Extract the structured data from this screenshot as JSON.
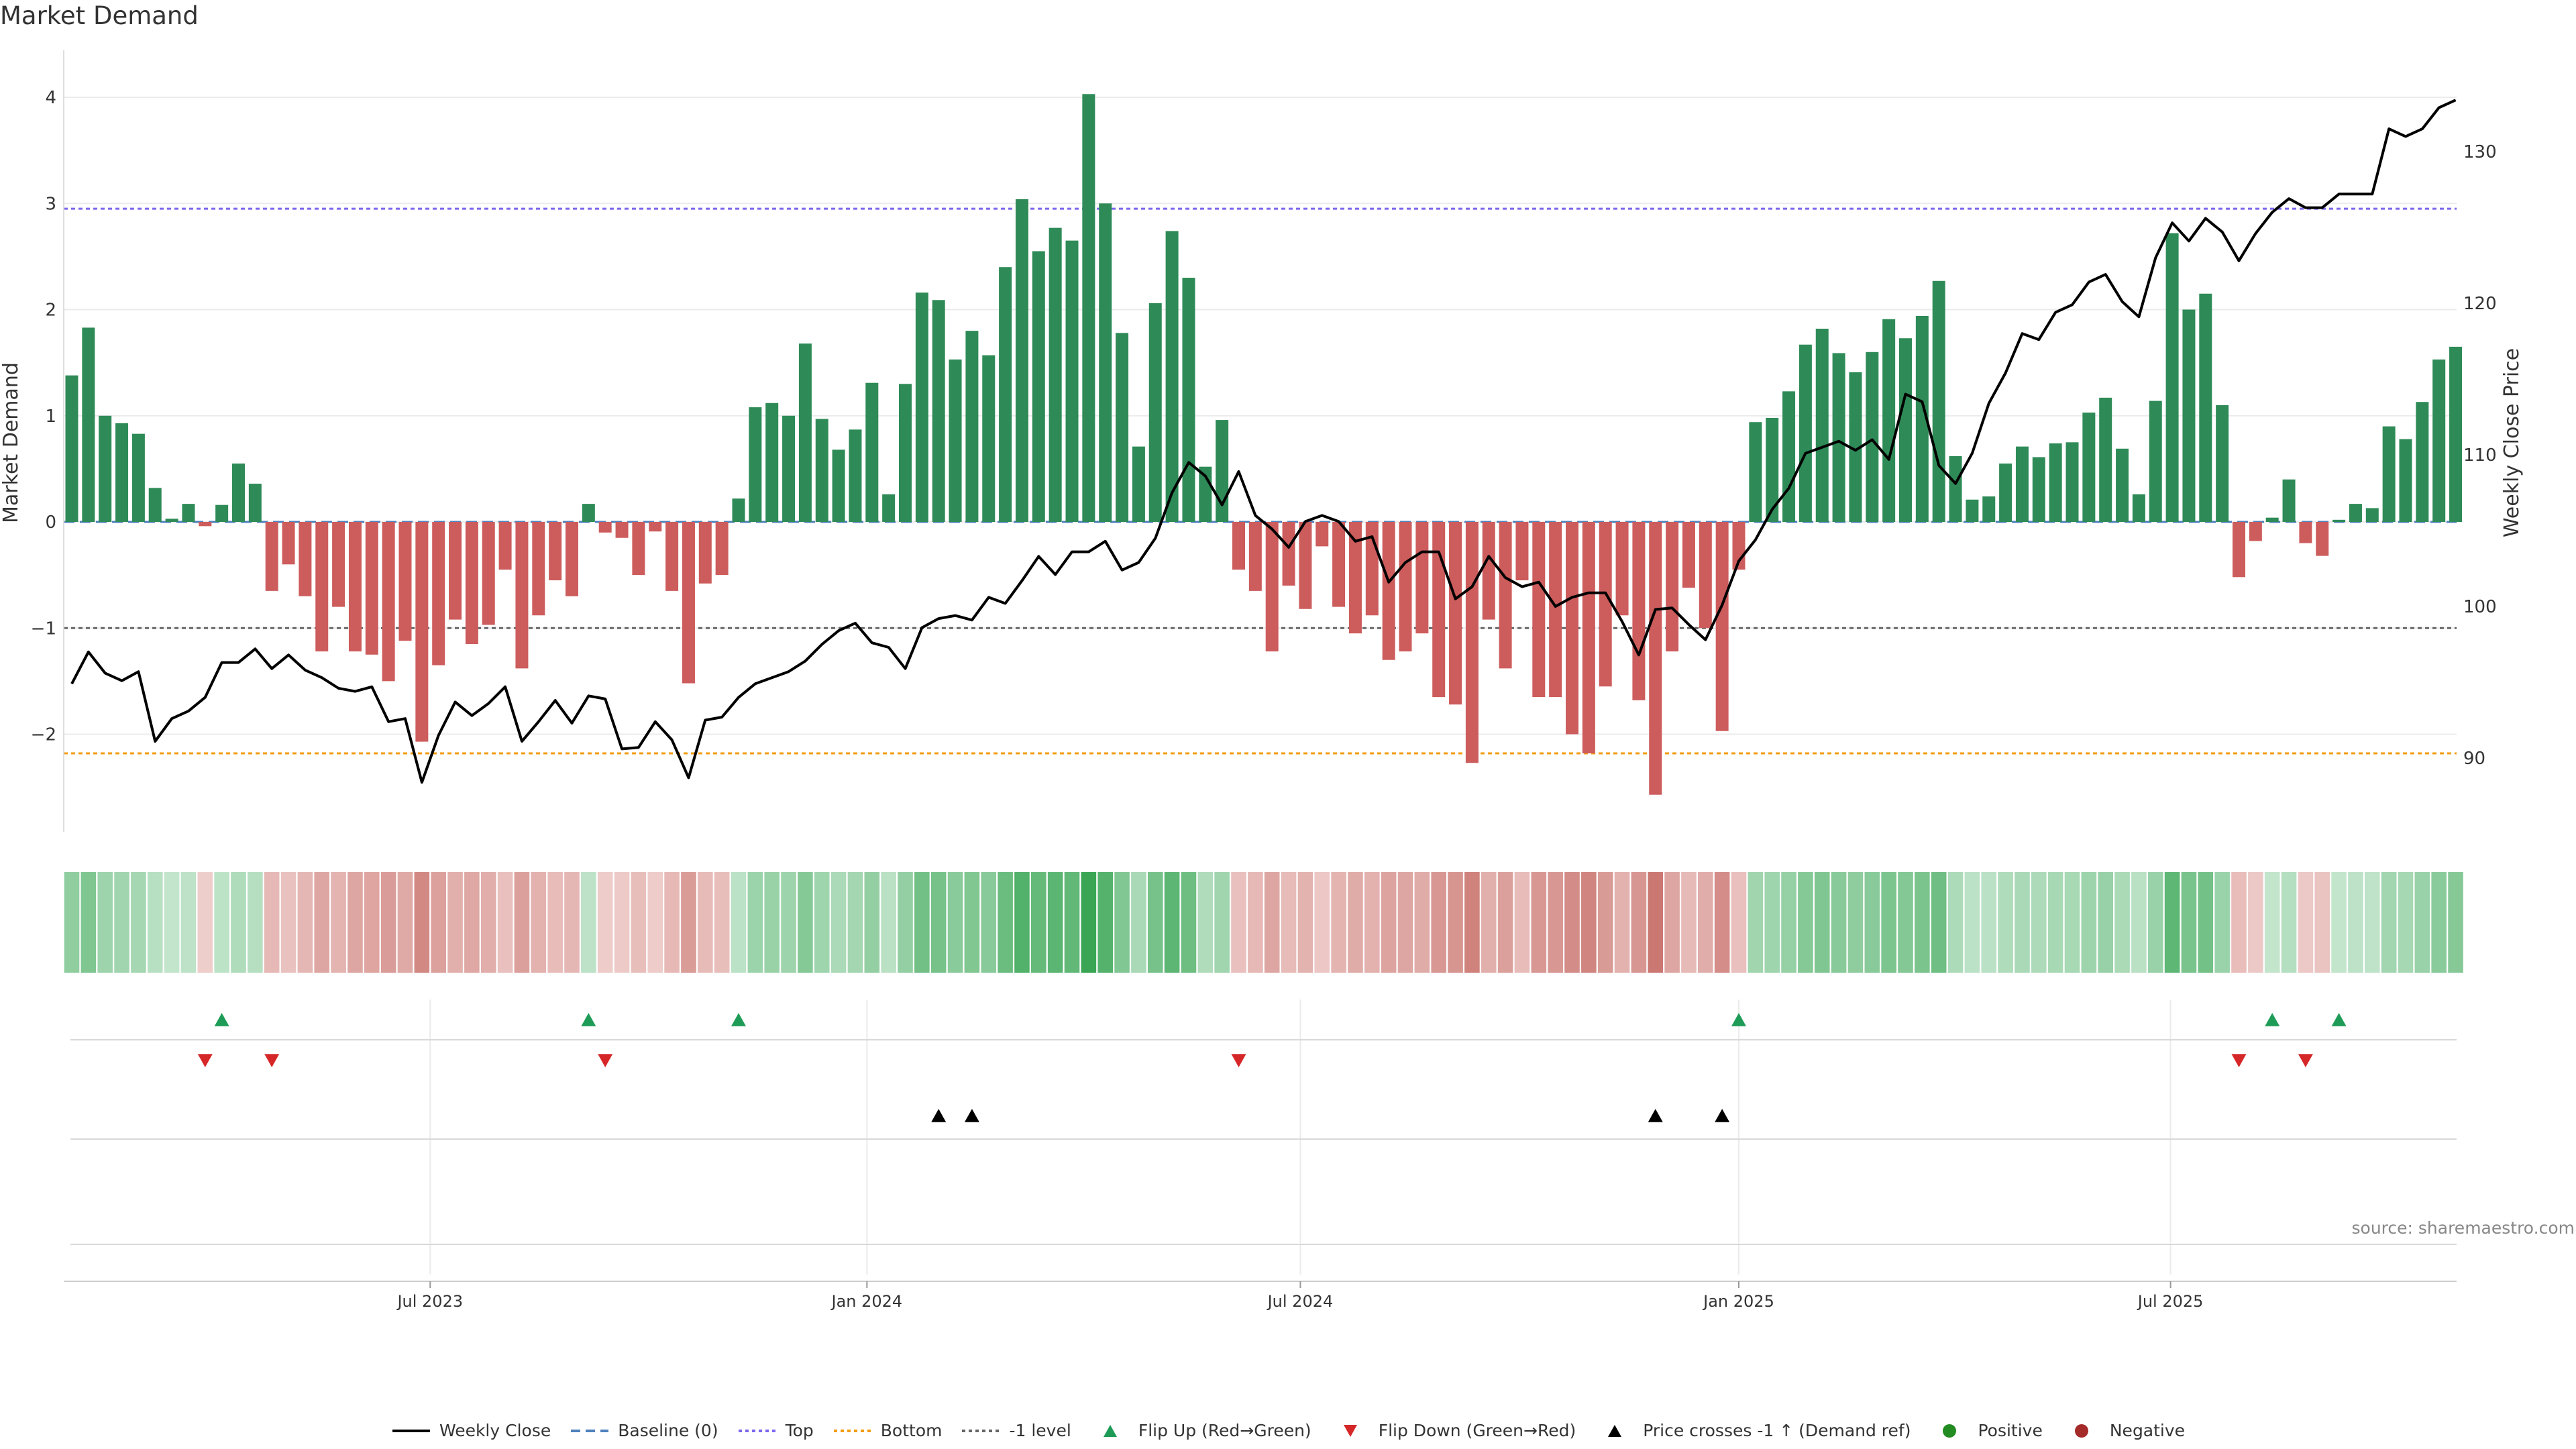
{
  "title": "Market Demand",
  "source_note": "source: sharemaestro.com",
  "colors": {
    "positive": "#2e8b57",
    "negative": "#cd5c5c",
    "price": "#000000",
    "baseline": "#4f81bd",
    "top": "#7b68ee",
    "bottom": "#f39c12",
    "minus1": "#666666",
    "flip_up": "#1e9c57",
    "flip_down": "#d62728",
    "cross": "#000000",
    "pos_dot": "#228b22",
    "neg_dot": "#a52a2a"
  },
  "chart_data": {
    "type": "bar",
    "title": "Market Demand",
    "ylabel_left": "Market Demand",
    "ylabel_right": "Weekly Close Price",
    "y_left_ticks": [
      4,
      3,
      2,
      1,
      0,
      -1,
      -2
    ],
    "y_left_tick_labels": [
      "4",
      "3",
      "2",
      "1",
      "0",
      "−1",
      "−2"
    ],
    "y_right_ticks": [
      90,
      100,
      110,
      120,
      130
    ],
    "y_left_range": [
      -2.9,
      4.3
    ],
    "y_right_range": [
      83.6,
      137.1
    ],
    "x_ticks": [
      {
        "label": "Jul 2023",
        "week": 21.5
      },
      {
        "label": "Jan 2024",
        "week": 47.7
      },
      {
        "label": "Jul 2024",
        "week": 73.7
      },
      {
        "label": "Jan 2025",
        "week": 100
      },
      {
        "label": "Jul 2025",
        "week": 125.9
      }
    ],
    "levels": {
      "baseline": 0,
      "top": 2.95,
      "bottom": -2.18,
      "minus1": -1.0
    },
    "demand": [
      1.38,
      1.83,
      1.0,
      0.93,
      0.83,
      0.32,
      0.03,
      0.17,
      -0.04,
      0.16,
      0.55,
      0.36,
      -0.65,
      -0.4,
      -0.7,
      -1.22,
      -0.8,
      -1.22,
      -1.25,
      -1.5,
      -1.12,
      -2.07,
      -1.35,
      -0.92,
      -1.15,
      -0.97,
      -0.45,
      -1.38,
      -0.88,
      -0.55,
      -0.7,
      0.17,
      -0.1,
      -0.15,
      -0.5,
      -0.09,
      -0.65,
      -1.52,
      -0.58,
      -0.5,
      0.22,
      1.08,
      1.12,
      1.0,
      1.68,
      0.97,
      0.68,
      0.87,
      1.31,
      0.26,
      1.3,
      2.16,
      2.09,
      1.53,
      1.8,
      1.57,
      2.4,
      3.04,
      2.55,
      2.77,
      2.65,
      4.03,
      3.0,
      1.78,
      0.71,
      2.06,
      2.74,
      2.3,
      0.52,
      0.96,
      -0.45,
      -0.65,
      -1.22,
      -0.6,
      -0.82,
      -0.23,
      -0.8,
      -1.05,
      -0.88,
      -1.3,
      -1.22,
      -1.05,
      -1.65,
      -1.72,
      -2.27,
      -0.92,
      -1.38,
      -0.55,
      -1.65,
      -1.65,
      -2.0,
      -2.18,
      -1.55,
      -0.88,
      -1.68,
      -2.57,
      -1.22,
      -0.62,
      -1.0,
      -1.97,
      -0.45,
      0.94,
      0.98,
      1.23,
      1.67,
      1.82,
      1.59,
      1.41,
      1.6,
      1.91,
      1.73,
      1.94,
      2.27,
      0.62,
      0.21,
      0.24,
      0.55,
      0.71,
      0.61,
      0.74,
      0.75,
      1.03,
      1.17,
      0.69,
      0.26,
      1.14,
      2.72,
      2.0,
      2.15,
      1.1,
      -0.52,
      -0.18,
      0.04,
      0.4,
      -0.2,
      -0.32,
      0.02,
      0.17,
      0.13,
      0.9,
      0.78,
      1.13,
      1.53,
      1.65
    ],
    "price": [
      94.9,
      97.0,
      95.6,
      95.1,
      95.7,
      91.1,
      92.6,
      93.1,
      94.0,
      96.3,
      96.3,
      97.2,
      95.9,
      96.8,
      95.8,
      95.3,
      94.6,
      94.4,
      94.7,
      92.4,
      92.6,
      88.4,
      91.5,
      93.7,
      92.8,
      93.6,
      94.7,
      91.1,
      92.4,
      93.8,
      92.3,
      94.1,
      93.9,
      90.6,
      90.7,
      92.4,
      91.2,
      88.7,
      92.5,
      92.7,
      94.0,
      94.9,
      95.3,
      95.7,
      96.4,
      97.5,
      98.4,
      98.9,
      97.6,
      97.3,
      95.9,
      98.6,
      99.2,
      99.4,
      99.1,
      100.6,
      100.2,
      101.7,
      103.3,
      102.1,
      103.6,
      103.6,
      104.3,
      102.4,
      102.9,
      104.5,
      107.5,
      109.5,
      108.6,
      106.7,
      108.9,
      106.0,
      105.1,
      103.9,
      105.6,
      106.0,
      105.6,
      104.3,
      104.6,
      101.6,
      102.9,
      103.6,
      103.6,
      100.5,
      101.3,
      103.3,
      101.9,
      101.3,
      101.6,
      100.0,
      100.6,
      100.9,
      100.9,
      99.0,
      96.8,
      99.8,
      99.9,
      98.8,
      97.8,
      100.1,
      103.0,
      104.4,
      106.4,
      107.8,
      110.1,
      110.5,
      110.9,
      110.3,
      111.0,
      109.7,
      114.0,
      113.5,
      109.3,
      108.1,
      110.1,
      113.4,
      115.4,
      118.0,
      117.6,
      119.4,
      119.9,
      121.4,
      121.9,
      120.1,
      119.1,
      123.0,
      125.3,
      124.1,
      125.6,
      124.7,
      122.8,
      124.6,
      126.0,
      126.9,
      126.3,
      126.3,
      127.2,
      127.2,
      127.2,
      131.5,
      131.0,
      131.5,
      132.9,
      133.4
    ],
    "flip_up_weeks": [
      9,
      31,
      40,
      100,
      132,
      136
    ],
    "flip_down_weeks": [
      8,
      12,
      32,
      70,
      130,
      134
    ],
    "price_cross_weeks": [
      52,
      54,
      95,
      99
    ]
  },
  "legend": [
    {
      "label": "Weekly Close",
      "kind": "line",
      "color": "#000000"
    },
    {
      "label": "Baseline (0)",
      "kind": "dash",
      "color": "#4f81bd"
    },
    {
      "label": "Top",
      "kind": "dot",
      "color": "#7b68ee"
    },
    {
      "label": "Bottom",
      "kind": "dot",
      "color": "#f39c12"
    },
    {
      "label": "-1 level",
      "kind": "dot",
      "color": "#666666"
    },
    {
      "label": "Flip Up (Red→Green)",
      "kind": "tri-up",
      "color": "#1e9c57"
    },
    {
      "label": "Flip Down (Green→Red)",
      "kind": "tri-down",
      "color": "#d62728"
    },
    {
      "label": "Price crosses -1 ↑ (Demand ref)",
      "kind": "tri-up",
      "color": "#000000"
    },
    {
      "label": "Positive",
      "kind": "circle",
      "color": "#228b22"
    },
    {
      "label": "Negative",
      "kind": "circle",
      "color": "#a52a2a"
    }
  ]
}
